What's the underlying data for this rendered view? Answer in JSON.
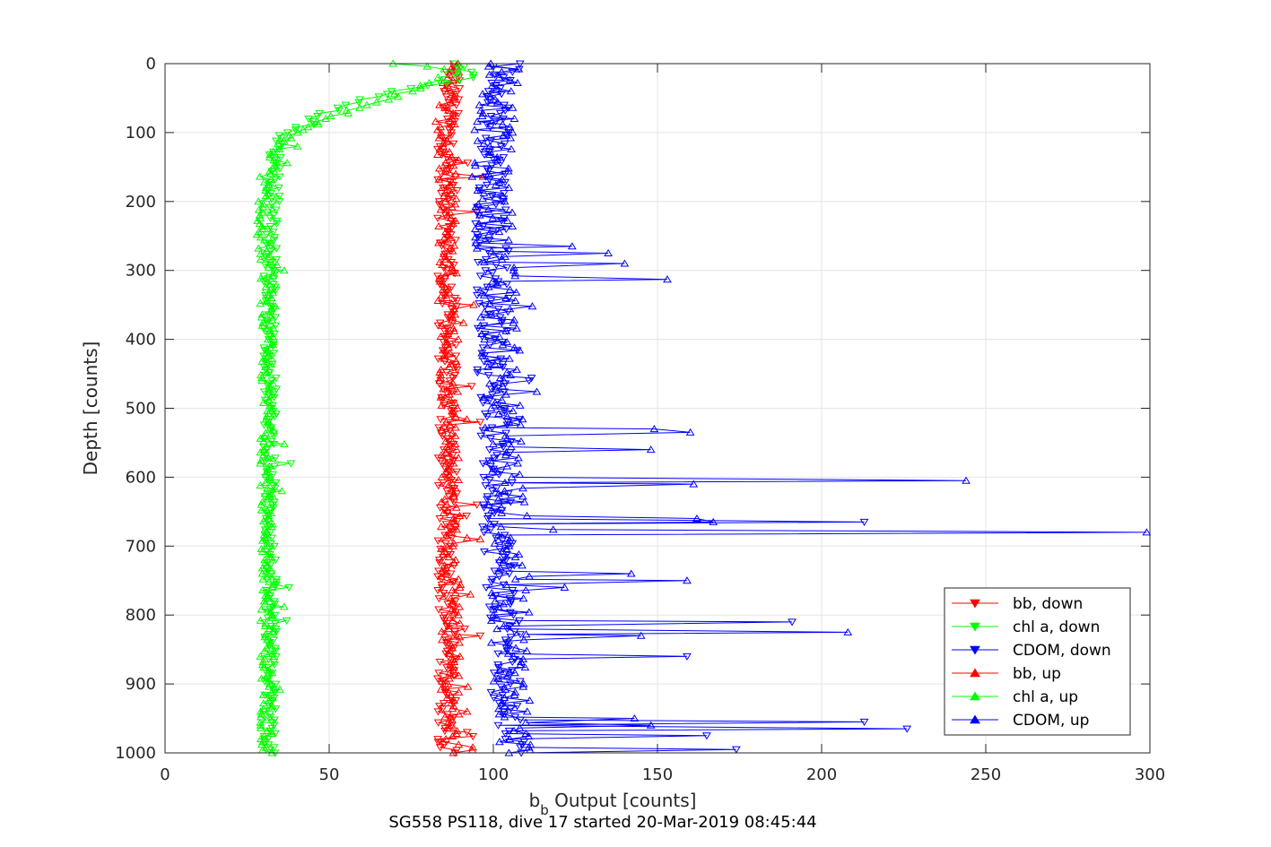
{
  "chart_data": {
    "type": "line",
    "title": "",
    "caption": "SG558 PS118, dive 17 started 20-Mar-2019 08:45:44",
    "xlabel_main": "b",
    "xlabel_sub": "b",
    "xlabel_rest": " Output [counts]",
    "ylabel": "Depth [counts]",
    "xlim": [
      0,
      300
    ],
    "ylim": [
      0,
      1000
    ],
    "y_reversed": true,
    "grid": true,
    "legend_placement": "bottom-right",
    "x_ticks": [
      0,
      50,
      100,
      150,
      200,
      250,
      300
    ],
    "y_ticks": [
      0,
      100,
      200,
      300,
      400,
      500,
      600,
      700,
      800,
      900,
      1000
    ],
    "colors": {
      "bb": "#ff0000",
      "chl": "#00ff00",
      "cdom": "#0000ff",
      "axis": "#262626",
      "grid": "#e5e5e5"
    },
    "series": [
      {
        "name": "bb, down",
        "color": "#ff0000",
        "marker": "triangle-down",
        "profile": [
          [
            0,
            87
          ],
          [
            20,
            88
          ],
          [
            50,
            87
          ],
          [
            100,
            86
          ],
          [
            200,
            86
          ],
          [
            300,
            86
          ],
          [
            400,
            86
          ],
          [
            500,
            86
          ],
          [
            600,
            86
          ],
          [
            700,
            86
          ],
          [
            800,
            86
          ],
          [
            900,
            86
          ],
          [
            1000,
            86
          ]
        ],
        "spread": 3,
        "spikes": [
          [
            215,
            95
          ],
          [
            520,
            96
          ],
          [
            640,
            95
          ],
          [
            830,
            96
          ],
          [
            970,
            92
          ]
        ]
      },
      {
        "name": "chl a, down",
        "color": "#00ff00",
        "marker": "triangle-down",
        "profile": [
          [
            0,
            90
          ],
          [
            10,
            92
          ],
          [
            20,
            93
          ],
          [
            40,
            70
          ],
          [
            60,
            55
          ],
          [
            80,
            45
          ],
          [
            100,
            37
          ],
          [
            120,
            34
          ],
          [
            150,
            33
          ],
          [
            200,
            33
          ],
          [
            300,
            32
          ],
          [
            400,
            32
          ],
          [
            500,
            32
          ],
          [
            600,
            32
          ],
          [
            700,
            32
          ],
          [
            800,
            32
          ],
          [
            900,
            32
          ],
          [
            1000,
            32
          ]
        ],
        "spread": 2,
        "spikes": []
      },
      {
        "name": "CDOM, down",
        "color": "#0000ff",
        "marker": "triangle-down",
        "profile": [
          [
            0,
            104
          ],
          [
            50,
            103
          ],
          [
            100,
            100
          ],
          [
            150,
            99
          ],
          [
            200,
            99
          ],
          [
            300,
            100
          ],
          [
            400,
            100
          ],
          [
            500,
            100
          ],
          [
            600,
            101
          ],
          [
            700,
            102
          ],
          [
            800,
            103
          ],
          [
            900,
            104
          ],
          [
            1000,
            106
          ]
        ],
        "spread": 5,
        "spikes": [
          [
            665,
            213
          ],
          [
            810,
            191
          ],
          [
            860,
            159
          ],
          [
            955,
            213
          ],
          [
            965,
            226
          ],
          [
            975,
            165
          ],
          [
            995,
            174
          ]
        ]
      },
      {
        "name": "bb, up",
        "color": "#ff0000",
        "marker": "triangle-up",
        "profile": [
          [
            0,
            87
          ],
          [
            20,
            88
          ],
          [
            50,
            86
          ],
          [
            100,
            85
          ],
          [
            200,
            86
          ],
          [
            300,
            86
          ],
          [
            400,
            86
          ],
          [
            500,
            87
          ],
          [
            600,
            87
          ],
          [
            700,
            87
          ],
          [
            800,
            87
          ],
          [
            900,
            87
          ],
          [
            1000,
            87
          ]
        ],
        "spread": 3,
        "spikes": [
          [
            350,
            94
          ],
          [
            690,
            96
          ],
          [
            770,
            93
          ],
          [
            940,
            92
          ]
        ]
      },
      {
        "name": "chl a, up",
        "color": "#00ff00",
        "marker": "triangle-up",
        "profile": [
          [
            0,
            70
          ],
          [
            5,
            80
          ],
          [
            10,
            90
          ],
          [
            30,
            80
          ],
          [
            50,
            68
          ],
          [
            70,
            55
          ],
          [
            90,
            45
          ],
          [
            110,
            36
          ],
          [
            130,
            32
          ],
          [
            160,
            31
          ],
          [
            205,
            29
          ],
          [
            300,
            31
          ],
          [
            400,
            31
          ],
          [
            500,
            31
          ],
          [
            600,
            31
          ],
          [
            700,
            31
          ],
          [
            800,
            31
          ],
          [
            900,
            31
          ],
          [
            1000,
            31
          ]
        ],
        "spread": 2,
        "spikes": []
      },
      {
        "name": "CDOM, up",
        "color": "#0000ff",
        "marker": "triangle-up",
        "profile": [
          [
            0,
            104
          ],
          [
            50,
            102
          ],
          [
            100,
            100
          ],
          [
            150,
            99
          ],
          [
            200,
            100
          ],
          [
            300,
            101
          ],
          [
            400,
            102
          ],
          [
            500,
            103
          ],
          [
            600,
            104
          ],
          [
            700,
            105
          ],
          [
            800,
            105
          ],
          [
            900,
            106
          ],
          [
            1000,
            107
          ]
        ],
        "spread": 6,
        "spikes": [
          [
            265,
            124
          ],
          [
            275,
            135
          ],
          [
            290,
            140
          ],
          [
            313,
            153
          ],
          [
            530,
            149
          ],
          [
            535,
            160
          ],
          [
            560,
            148
          ],
          [
            605,
            244
          ],
          [
            610,
            161
          ],
          [
            660,
            162
          ],
          [
            665,
            167
          ],
          [
            680,
            299
          ],
          [
            740,
            142
          ],
          [
            750,
            159
          ],
          [
            825,
            208
          ],
          [
            830,
            145
          ],
          [
            950,
            143
          ],
          [
            960,
            148
          ]
        ]
      }
    ]
  }
}
